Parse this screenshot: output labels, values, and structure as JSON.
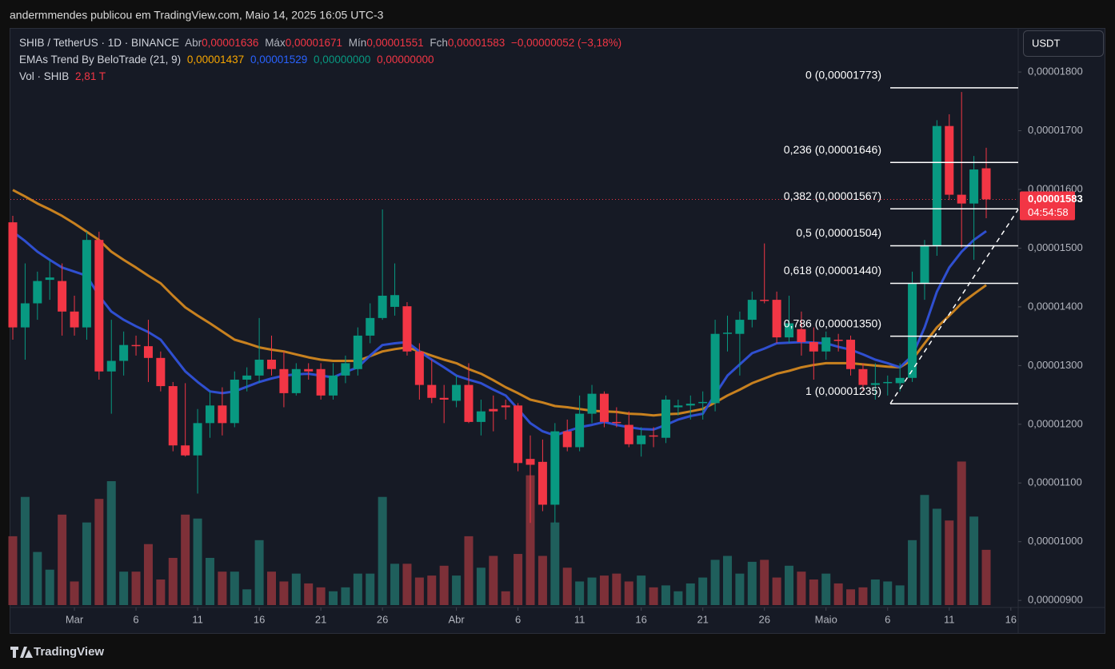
{
  "header": {
    "publisher": "andermmendes publicou em TradingView.com, Maio 14, 2025 16:05 UTC-3"
  },
  "footer": {
    "brand": "TradingView"
  },
  "chart_data": {
    "type": "candlestick",
    "currency_button": "USDT",
    "legend": {
      "symbol": "SHIB / TetherUS · 1D · BINANCE",
      "open_label": "Abr",
      "open": "0,00001636",
      "high_label": "Máx",
      "high": "0,00001671",
      "low_label": "Mín",
      "low": "0,00001551",
      "close_label": "Fch",
      "close": "0,00001583",
      "change": "−0,00000052 (−3,18%)",
      "indicator": "EMAs Trend By BeloTrade (21, 9)",
      "indicator_values": [
        "0,00001437",
        "0,00001529",
        "0,00000000",
        "0,00000000"
      ],
      "volume_label": "Vol · SHIB",
      "volume": "2,81 T"
    },
    "up_color": "#089981",
    "down_color": "#f23645",
    "volume_up_color": "#1f5f5c",
    "volume_down_color": "#7d3038",
    "x": [
      "2025-02-24",
      "2025-02-25",
      "2025-02-26",
      "2025-02-27",
      "2025-02-28",
      "2025-03-01",
      "2025-03-02",
      "2025-03-03",
      "2025-03-04",
      "2025-03-05",
      "2025-03-06",
      "2025-03-07",
      "2025-03-08",
      "2025-03-09",
      "2025-03-10",
      "2025-03-11",
      "2025-03-12",
      "2025-03-13",
      "2025-03-14",
      "2025-03-15",
      "2025-03-16",
      "2025-03-17",
      "2025-03-18",
      "2025-03-19",
      "2025-03-20",
      "2025-03-21",
      "2025-03-22",
      "2025-03-23",
      "2025-03-24",
      "2025-03-25",
      "2025-03-26",
      "2025-03-27",
      "2025-03-28",
      "2025-03-29",
      "2025-03-30",
      "2025-03-31",
      "2025-04-01",
      "2025-04-02",
      "2025-04-03",
      "2025-04-04",
      "2025-04-05",
      "2025-04-06",
      "2025-04-07",
      "2025-04-08",
      "2025-04-09",
      "2025-04-10",
      "2025-04-11",
      "2025-04-12",
      "2025-04-13",
      "2025-04-14",
      "2025-04-15",
      "2025-04-16",
      "2025-04-17",
      "2025-04-18",
      "2025-04-19",
      "2025-04-20",
      "2025-04-21",
      "2025-04-22",
      "2025-04-23",
      "2025-04-24",
      "2025-04-25",
      "2025-04-26",
      "2025-04-27",
      "2025-04-28",
      "2025-04-29",
      "2025-04-30",
      "2025-05-01",
      "2025-05-02",
      "2025-05-03",
      "2025-05-04",
      "2025-05-05",
      "2025-05-06",
      "2025-05-07",
      "2025-05-08",
      "2025-05-09",
      "2025-05-10",
      "2025-05-11",
      "2025-05-12",
      "2025-05-13",
      "2025-05-14"
    ],
    "open": [
      1.544e-05,
      1.365e-05,
      1.406e-05,
      1.446e-05,
      1.444e-05,
      1.392e-05,
      1.365e-05,
      1.514e-05,
      1.29e-05,
      1.308e-05,
      1.335e-05,
      1.333e-05,
      1.313e-05,
      1.265e-05,
      1.164e-05,
      1.147e-05,
      1.202e-05,
      1.232e-05,
      1.202e-05,
      1.276e-05,
      1.283e-05,
      1.31e-05,
      1.294e-05,
      1.253e-05,
      1.294e-05,
      1.294e-05,
      1.249e-05,
      1.283e-05,
      1.294e-05,
      1.351e-05,
      1.381e-05,
      1.4e-05,
      1.401e-05,
      1.324e-05,
      1.267e-05,
      1.245e-05,
      1.24e-05,
      1.267e-05,
      1.204e-05,
      1.226e-05,
      1.232e-05,
      1.232e-05,
      1.141e-05,
      1.136e-05,
      1.063e-05,
      1.188e-05,
      1.161e-05,
      1.218e-05,
      1.252e-05,
      1.204e-05,
      1.199e-05,
      1.166e-05,
      1.181e-05,
      1.177e-05,
      1.229e-05,
      1.232e-05,
      1.236e-05,
      1.236e-05,
      1.354e-05,
      1.354e-05,
      1.378e-05,
      1.412e-05,
      1.412e-05,
      1.348e-05,
      1.362e-05,
      1.34e-05,
      1.324e-05,
      1.344e-05,
      1.344e-05,
      1.294e-05,
      1.267e-05,
      1.27e-05,
      1.27e-05,
      1.279e-05,
      1.44e-05,
      1.504e-05,
      1.708e-05,
      1.591e-05,
      1.576e-05,
      1.636e-05
    ],
    "high": [
      1.555e-05,
      1.474e-05,
      1.46e-05,
      1.48e-05,
      1.474e-05,
      1.419e-05,
      1.528e-05,
      1.528e-05,
      1.378e-05,
      1.358e-05,
      1.351e-05,
      1.378e-05,
      1.324e-05,
      1.272e-05,
      1.27e-05,
      1.226e-05,
      1.256e-05,
      1.263e-05,
      1.29e-05,
      1.297e-05,
      1.381e-05,
      1.351e-05,
      1.324e-05,
      1.304e-05,
      1.304e-05,
      1.304e-05,
      1.304e-05,
      1.317e-05,
      1.365e-05,
      1.406e-05,
      1.566e-05,
      1.474e-05,
      1.408e-05,
      1.338e-05,
      1.31e-05,
      1.267e-05,
      1.283e-05,
      1.304e-05,
      1.242e-05,
      1.249e-05,
      1.242e-05,
      1.236e-05,
      1.181e-05,
      1.174e-05,
      1.202e-05,
      1.208e-05,
      1.249e-05,
      1.267e-05,
      1.256e-05,
      1.229e-05,
      1.222e-05,
      1.195e-05,
      1.195e-05,
      1.249e-05,
      1.242e-05,
      1.249e-05,
      1.256e-05,
      1.378e-05,
      1.385e-05,
      1.392e-05,
      1.426e-05,
      1.508e-05,
      1.426e-05,
      1.419e-05,
      1.392e-05,
      1.365e-05,
      1.358e-05,
      1.354e-05,
      1.351e-05,
      1.304e-05,
      1.304e-05,
      1.283e-05,
      1.304e-05,
      1.46e-05,
      1.514e-05,
      1.718e-05,
      1.728e-05,
      1.766e-05,
      1.657e-05,
      1.671e-05
    ],
    "low": [
      1.344e-05,
      1.31e-05,
      1.378e-05,
      1.412e-05,
      1.351e-05,
      1.351e-05,
      1.344e-05,
      1.276e-05,
      1.218e-05,
      1.283e-05,
      1.317e-05,
      1.272e-05,
      1.256e-05,
      1.154e-05,
      1.145e-05,
      1.082e-05,
      1.177e-05,
      1.181e-05,
      1.195e-05,
      1.256e-05,
      1.27e-05,
      1.283e-05,
      1.229e-05,
      1.249e-05,
      1.276e-05,
      1.242e-05,
      1.242e-05,
      1.27e-05,
      1.283e-05,
      1.338e-05,
      1.378e-05,
      1.385e-05,
      1.317e-05,
      1.242e-05,
      1.236e-05,
      1.202e-05,
      1.229e-05,
      1.202e-05,
      1.181e-05,
      1.188e-05,
      1.208e-05,
      1.12e-05,
      1.032e-05,
      1.052e-05,
      1.032e-05,
      1.154e-05,
      1.154e-05,
      1.202e-05,
      1.195e-05,
      1.195e-05,
      1.161e-05,
      1.145e-05,
      1.161e-05,
      1.168e-05,
      1.215e-05,
      1.208e-05,
      1.208e-05,
      1.222e-05,
      1.324e-05,
      1.283e-05,
      1.365e-05,
      1.406e-05,
      1.338e-05,
      1.338e-05,
      1.317e-05,
      1.276e-05,
      1.31e-05,
      1.324e-05,
      1.283e-05,
      1.256e-05,
      1.242e-05,
      1.249e-05,
      1.256e-05,
      1.272e-05,
      1.412e-05,
      1.487e-05,
      1.582e-05,
      1.501e-05,
      1.48e-05,
      1.551e-05
    ],
    "close": [
      1.365e-05,
      1.406e-05,
      1.444e-05,
      1.45e-05,
      1.392e-05,
      1.365e-05,
      1.514e-05,
      1.29e-05,
      1.308e-05,
      1.335e-05,
      1.333e-05,
      1.313e-05,
      1.265e-05,
      1.164e-05,
      1.147e-05,
      1.202e-05,
      1.232e-05,
      1.202e-05,
      1.276e-05,
      1.283e-05,
      1.31e-05,
      1.294e-05,
      1.253e-05,
      1.294e-05,
      1.29e-05,
      1.249e-05,
      1.283e-05,
      1.304e-05,
      1.351e-05,
      1.381e-05,
      1.419e-05,
      1.42e-05,
      1.324e-05,
      1.267e-05,
      1.245e-05,
      1.242e-05,
      1.267e-05,
      1.204e-05,
      1.222e-05,
      1.222e-05,
      1.229e-05,
      1.134e-05,
      1.131e-05,
      1.063e-05,
      1.188e-05,
      1.161e-05,
      1.218e-05,
      1.252e-05,
      1.204e-05,
      1.202e-05,
      1.166e-05,
      1.181e-05,
      1.179e-05,
      1.242e-05,
      1.232e-05,
      1.235e-05,
      1.238e-05,
      1.354e-05,
      1.356e-05,
      1.378e-05,
      1.412e-05,
      1.41e-05,
      1.348e-05,
      1.372e-05,
      1.34e-05,
      1.324e-05,
      1.348e-05,
      1.342e-05,
      1.294e-05,
      1.267e-05,
      1.27e-05,
      1.272e-05,
      1.279e-05,
      1.44e-05,
      1.504e-05,
      1.708e-05,
      1.591e-05,
      1.576e-05,
      1.634e-05,
      1.583e-05
    ],
    "volume": [
      3.5,
      5.5,
      2.7,
      1.8,
      4.6,
      1.2,
      4.2,
      5.4,
      6.3,
      1.7,
      1.7,
      3.1,
      1.3,
      2.4,
      4.6,
      4.4,
      2.4,
      1.7,
      1.7,
      0.8,
      3.3,
      1.7,
      1.2,
      1.6,
      1.1,
      0.9,
      0.7,
      0.9,
      1.6,
      1.6,
      5.5,
      2.1,
      2.1,
      1.4,
      1.5,
      2.0,
      1.5,
      3.5,
      1.9,
      2.5,
      0.7,
      2.6,
      6.6,
      2.5,
      4.2,
      1.9,
      1.2,
      1.4,
      1.5,
      1.6,
      1.2,
      1.5,
      0.9,
      1.0,
      0.7,
      1.1,
      1.4,
      2.3,
      2.5,
      1.6,
      2.2,
      2.3,
      1.4,
      2.0,
      1.7,
      1.3,
      1.6,
      1.1,
      0.8,
      0.9,
      1.3,
      1.2,
      1.0,
      3.3,
      5.6,
      4.9,
      4.3,
      7.3,
      4.5,
      2.81
    ],
    "series": [
      {
        "name": "EMA 21",
        "color": "#c8811f",
        "values": [
          1.599e-05,
          1.588e-05,
          1.576e-05,
          1.566e-05,
          1.555e-05,
          1.542e-05,
          1.528e-05,
          1.514e-05,
          1.494e-05,
          1.48e-05,
          1.467e-05,
          1.453e-05,
          1.44e-05,
          1.419e-05,
          1.399e-05,
          1.385e-05,
          1.372e-05,
          1.358e-05,
          1.344e-05,
          1.338e-05,
          1.331e-05,
          1.327e-05,
          1.324e-05,
          1.319e-05,
          1.314e-05,
          1.31e-05,
          1.308e-05,
          1.308e-05,
          1.308e-05,
          1.316e-05,
          1.324e-05,
          1.328e-05,
          1.331e-05,
          1.324e-05,
          1.317e-05,
          1.31e-05,
          1.304e-05,
          1.294e-05,
          1.286e-05,
          1.275e-05,
          1.263e-05,
          1.253e-05,
          1.242e-05,
          1.237e-05,
          1.231e-05,
          1.229e-05,
          1.226e-05,
          1.223e-05,
          1.222e-05,
          1.221e-05,
          1.218e-05,
          1.217e-05,
          1.215e-05,
          1.217e-05,
          1.218e-05,
          1.222e-05,
          1.226e-05,
          1.237e-05,
          1.249e-05,
          1.259e-05,
          1.27e-05,
          1.278e-05,
          1.286e-05,
          1.291e-05,
          1.297e-05,
          1.301e-05,
          1.304e-05,
          1.304e-05,
          1.304e-05,
          1.302e-05,
          1.3e-05,
          1.298e-05,
          1.297e-05,
          1.31e-05,
          1.338e-05,
          1.365e-05,
          1.385e-05,
          1.406e-05,
          1.422e-05,
          1.437e-05
        ]
      },
      {
        "name": "EMA 9",
        "color": "#2f4fd0",
        "values": [
          1.528e-05,
          1.512e-05,
          1.494e-05,
          1.48e-05,
          1.467e-05,
          1.46e-05,
          1.453e-05,
          1.419e-05,
          1.392e-05,
          1.378e-05,
          1.367e-05,
          1.357e-05,
          1.344e-05,
          1.317e-05,
          1.29e-05,
          1.272e-05,
          1.256e-05,
          1.253e-05,
          1.256e-05,
          1.264e-05,
          1.272e-05,
          1.278e-05,
          1.283e-05,
          1.285e-05,
          1.286e-05,
          1.283e-05,
          1.28e-05,
          1.289e-05,
          1.297e-05,
          1.317e-05,
          1.335e-05,
          1.338e-05,
          1.34e-05,
          1.324e-05,
          1.31e-05,
          1.297e-05,
          1.283e-05,
          1.276e-05,
          1.27e-05,
          1.259e-05,
          1.249e-05,
          1.226e-05,
          1.202e-05,
          1.188e-05,
          1.181e-05,
          1.188e-05,
          1.195e-05,
          1.199e-05,
          1.204e-05,
          1.199e-05,
          1.195e-05,
          1.192e-05,
          1.191e-05,
          1.199e-05,
          1.208e-05,
          1.214e-05,
          1.218e-05,
          1.251e-05,
          1.283e-05,
          1.302e-05,
          1.321e-05,
          1.329e-05,
          1.338e-05,
          1.339e-05,
          1.34e-05,
          1.339e-05,
          1.338e-05,
          1.332e-05,
          1.327e-05,
          1.319e-05,
          1.31e-05,
          1.304e-05,
          1.297e-05,
          1.317e-05,
          1.365e-05,
          1.426e-05,
          1.467e-05,
          1.494e-05,
          1.514e-05,
          1.529e-05
        ]
      }
    ],
    "fibonacci": [
      {
        "label": "0 (0,00001773)",
        "value": 1.773e-05
      },
      {
        "label": "0,236 (0,00001646)",
        "value": 1.646e-05
      },
      {
        "label": "0,382 (0,00001567)",
        "value": 1.567e-05
      },
      {
        "label": "0,5 (0,00001504)",
        "value": 1.504e-05
      },
      {
        "label": "0,618 (0,00001440)",
        "value": 1.44e-05
      },
      {
        "label": "0,786 (0,00001350)",
        "value": 1.35e-05
      },
      {
        "label": "1 (0,00001235)",
        "value": 1.235e-05
      }
    ],
    "current_price": {
      "value": 1.583e-05,
      "label": "0,00001583"
    },
    "countdown": "04:54:58",
    "ylim": [
      8.88e-06,
      1.875e-05
    ],
    "yticks": [
      {
        "value": 1.8e-05,
        "label": "0,00001800"
      },
      {
        "value": 1.7e-05,
        "label": "0,00001700"
      },
      {
        "value": 1.6e-05,
        "label": "0,00001600"
      },
      {
        "value": 1.5e-05,
        "label": "0,00001500"
      },
      {
        "value": 1.4e-05,
        "label": "0,00001400"
      },
      {
        "value": 1.3e-05,
        "label": "0,00001300"
      },
      {
        "value": 1.2e-05,
        "label": "0,00001200"
      },
      {
        "value": 1.1e-05,
        "label": "0,00001100"
      },
      {
        "value": 1e-05,
        "label": "0,00001000"
      },
      {
        "value": 9e-06,
        "label": "0,00000900"
      }
    ],
    "xticks": [
      {
        "value": "2025-03-01",
        "label": "Mar"
      },
      {
        "value": "2025-03-06",
        "label": "6"
      },
      {
        "value": "2025-03-11",
        "label": "11"
      },
      {
        "value": "2025-03-16",
        "label": "16"
      },
      {
        "value": "2025-03-21",
        "label": "21"
      },
      {
        "value": "2025-03-26",
        "label": "26"
      },
      {
        "value": "2025-04-01",
        "label": "Abr"
      },
      {
        "value": "2025-04-06",
        "label": "6"
      },
      {
        "value": "2025-04-11",
        "label": "11"
      },
      {
        "value": "2025-04-16",
        "label": "16"
      },
      {
        "value": "2025-04-21",
        "label": "21"
      },
      {
        "value": "2025-04-26",
        "label": "26"
      },
      {
        "value": "2025-05-01",
        "label": "Maio"
      },
      {
        "value": "2025-05-06",
        "label": "6"
      },
      {
        "value": "2025-05-11",
        "label": "11"
      },
      {
        "value": "2025-05-16",
        "label": "16"
      }
    ],
    "grid": false
  }
}
